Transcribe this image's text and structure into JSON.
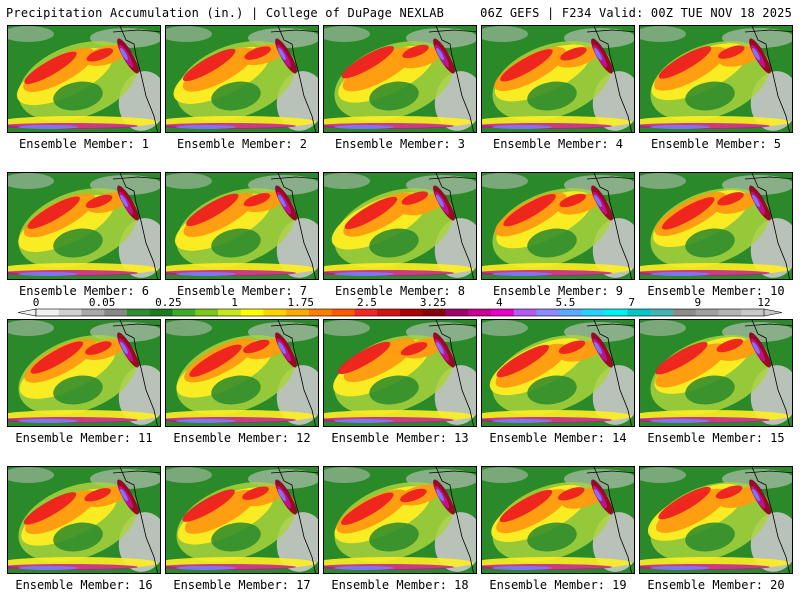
{
  "header": {
    "title": "Precipitation Accumulation (in.) | College of DuPage NEXLAB",
    "run_info": "06Z GEFS | F234 Valid: 00Z TUE NOV 18 2025"
  },
  "panels": [
    {
      "label": "Ensemble Member: 1"
    },
    {
      "label": "Ensemble Member: 2"
    },
    {
      "label": "Ensemble Member: 3"
    },
    {
      "label": "Ensemble Member: 4"
    },
    {
      "label": "Ensemble Member: 5"
    },
    {
      "label": "Ensemble Member: 6"
    },
    {
      "label": "Ensemble Member: 7"
    },
    {
      "label": "Ensemble Member: 8"
    },
    {
      "label": "Ensemble Member: 9"
    },
    {
      "label": "Ensemble Member: 10"
    },
    {
      "label": "Ensemble Member: 11"
    },
    {
      "label": "Ensemble Member: 12"
    },
    {
      "label": "Ensemble Member: 13"
    },
    {
      "label": "Ensemble Member: 14"
    },
    {
      "label": "Ensemble Member: 15"
    },
    {
      "label": "Ensemble Member: 16"
    },
    {
      "label": "Ensemble Member: 17"
    },
    {
      "label": "Ensemble Member: 18"
    },
    {
      "label": "Ensemble Member: 19"
    },
    {
      "label": "Ensemble Member: 20"
    }
  ],
  "colorbar": {
    "tick_labels": [
      "0",
      "0.05",
      "0.25",
      "1",
      "1.75",
      "2.5",
      "3.25",
      "4",
      "5.5",
      "7",
      "9",
      "12"
    ],
    "colors": [
      "#f0f0f0",
      "#d0d0d0",
      "#a8a8a8",
      "#888888",
      "#2f8f2f",
      "#1f7a1f",
      "#3caa2a",
      "#7cc81e",
      "#c8e61e",
      "#ffff00",
      "#ffd400",
      "#ffaa00",
      "#ff8000",
      "#ff5a00",
      "#f02828",
      "#d01414",
      "#aa0000",
      "#880010",
      "#a0006a",
      "#c80096",
      "#e600c8",
      "#b45af0",
      "#8c8cff",
      "#5aaaff",
      "#28d2ff",
      "#00f0f0",
      "#00c8c8",
      "#46b4b4",
      "#8c8c8c",
      "#a0a0a0",
      "#b4b4b4",
      "#c8c8c8"
    ]
  },
  "map_palette": {
    "land": "#2a8a2a",
    "light": "#a8d43c",
    "yellow": "#ffee22",
    "orange": "#ff9a10",
    "red": "#ee2020",
    "darkred": "#990022",
    "magenta": "#c0129a",
    "blue": "#7a7aff",
    "gray": "#c8c8c8"
  }
}
